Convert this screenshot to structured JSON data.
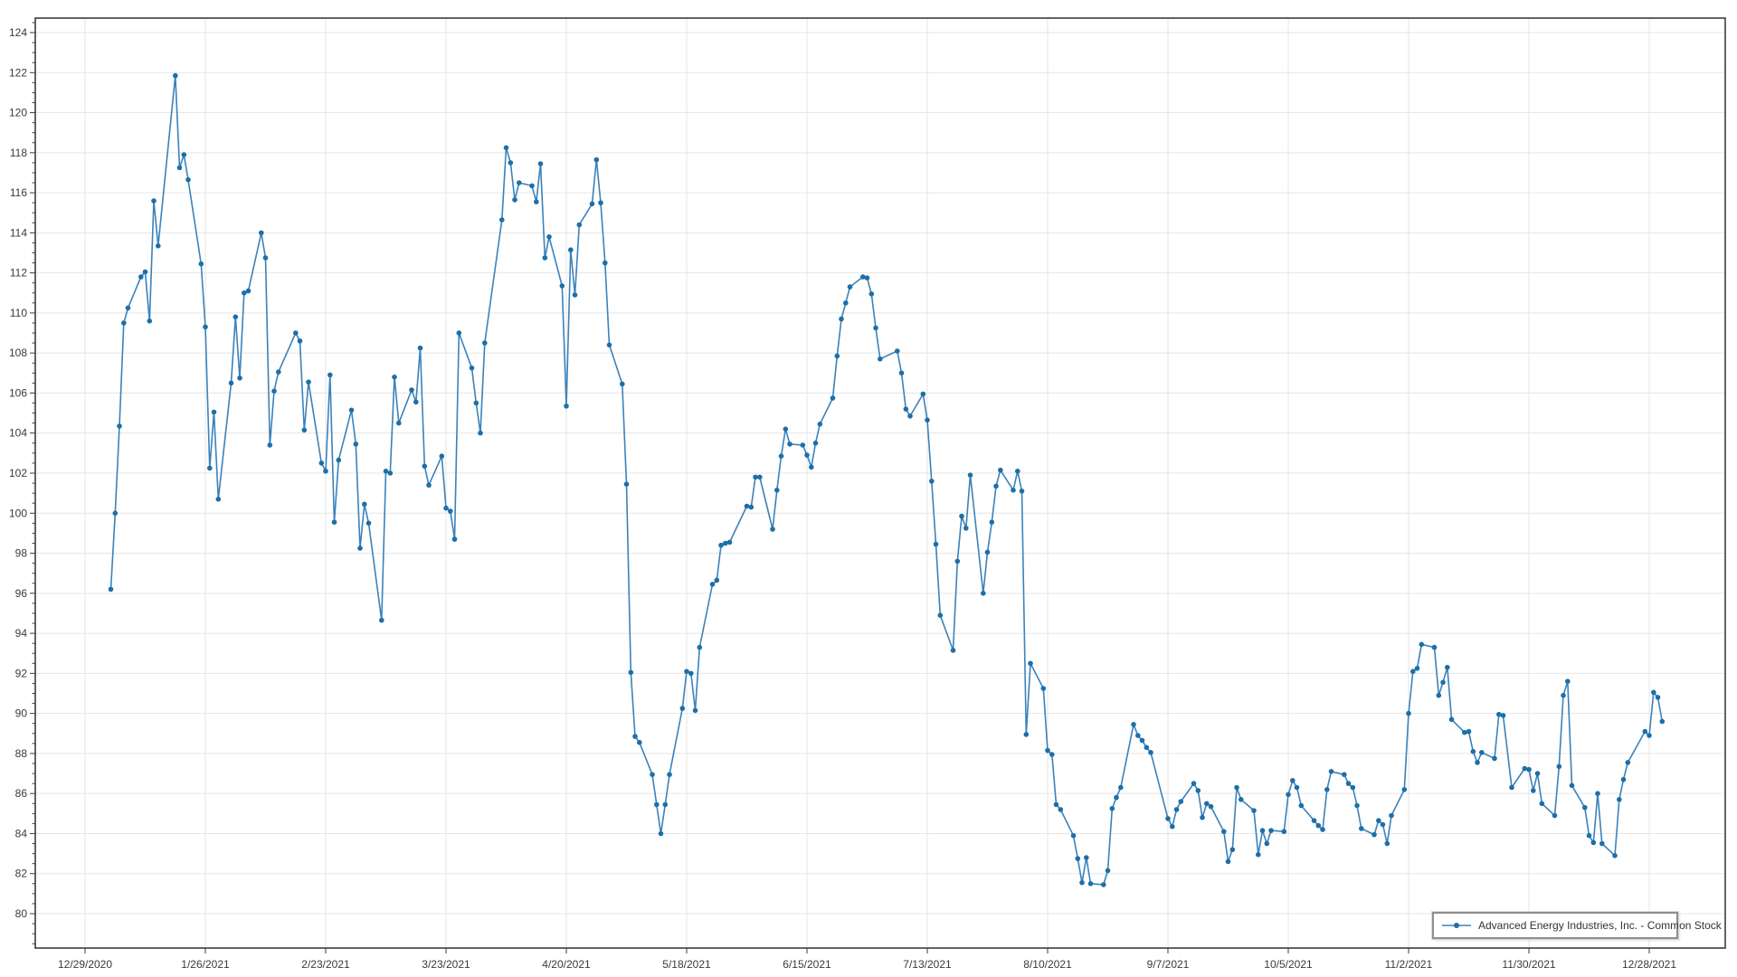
{
  "chart_data": {
    "type": "line",
    "title": "",
    "xlabel": "",
    "ylabel": "",
    "grid": true,
    "legend_position": "bottom-right",
    "legend": {
      "label": "Advanced Energy Industries, Inc. - Common Stock"
    },
    "axis": {
      "y_ticks": [
        80,
        82,
        84,
        86,
        88,
        90,
        92,
        94,
        96,
        98,
        100,
        102,
        104,
        106,
        108,
        110,
        112,
        114,
        116,
        118,
        120,
        122,
        124
      ],
      "y_minor_step": 0.5,
      "ylim": [
        78.4,
        124.8
      ],
      "x_ticks": [
        "12/29/2020",
        "1/26/2021",
        "2/23/2021",
        "3/23/2021",
        "4/20/2021",
        "5/18/2021",
        "6/15/2021",
        "7/13/2021",
        "8/10/2021",
        "9/7/2021",
        "10/5/2021",
        "11/2/2021",
        "11/30/2021",
        "12/28/2021"
      ],
      "grid_color": "#e6e6e6",
      "border_color": "#3c3c3c",
      "tick_color": "#3c3c3c",
      "label_color": "#3a3a3a"
    },
    "series": [
      {
        "name": "Advanced Energy Industries, Inc. - Common Stock",
        "line_color": "#3b82bb",
        "marker_color": "#1d6fa8",
        "marker": "circle",
        "dates": [
          "2021-01-04",
          "2021-01-05",
          "2021-01-06",
          "2021-01-07",
          "2021-01-08",
          "2021-01-11",
          "2021-01-12",
          "2021-01-13",
          "2021-01-14",
          "2021-01-15",
          "2021-01-19",
          "2021-01-20",
          "2021-01-21",
          "2021-01-22",
          "2021-01-25",
          "2021-01-26",
          "2021-01-27",
          "2021-01-28",
          "2021-01-29",
          "2021-02-01",
          "2021-02-02",
          "2021-02-03",
          "2021-02-04",
          "2021-02-05",
          "2021-02-08",
          "2021-02-09",
          "2021-02-10",
          "2021-02-11",
          "2021-02-12",
          "2021-02-16",
          "2021-02-17",
          "2021-02-18",
          "2021-02-19",
          "2021-02-22",
          "2021-02-23",
          "2021-02-24",
          "2021-02-25",
          "2021-02-26",
          "2021-03-01",
          "2021-03-02",
          "2021-03-03",
          "2021-03-04",
          "2021-03-05",
          "2021-03-08",
          "2021-03-09",
          "2021-03-10",
          "2021-03-11",
          "2021-03-12",
          "2021-03-15",
          "2021-03-16",
          "2021-03-17",
          "2021-03-18",
          "2021-03-19",
          "2021-03-22",
          "2021-03-23",
          "2021-03-24",
          "2021-03-25",
          "2021-03-26",
          "2021-03-29",
          "2021-03-30",
          "2021-03-31",
          "2021-04-01",
          "2021-04-05",
          "2021-04-06",
          "2021-04-07",
          "2021-04-08",
          "2021-04-09",
          "2021-04-12",
          "2021-04-13",
          "2021-04-14",
          "2021-04-15",
          "2021-04-16",
          "2021-04-19",
          "2021-04-20",
          "2021-04-21",
          "2021-04-22",
          "2021-04-23",
          "2021-04-26",
          "2021-04-27",
          "2021-04-28",
          "2021-04-29",
          "2021-04-30",
          "2021-05-03",
          "2021-05-04",
          "2021-05-05",
          "2021-05-06",
          "2021-05-07",
          "2021-05-10",
          "2021-05-11",
          "2021-05-12",
          "2021-05-13",
          "2021-05-14",
          "2021-05-17",
          "2021-05-18",
          "2021-05-19",
          "2021-05-20",
          "2021-05-21",
          "2021-05-24",
          "2021-05-25",
          "2021-05-26",
          "2021-05-27",
          "2021-05-28",
          "2021-06-01",
          "2021-06-02",
          "2021-06-03",
          "2021-06-04",
          "2021-06-07",
          "2021-06-08",
          "2021-06-09",
          "2021-06-10",
          "2021-06-11",
          "2021-06-14",
          "2021-06-15",
          "2021-06-16",
          "2021-06-17",
          "2021-06-18",
          "2021-06-21",
          "2021-06-22",
          "2021-06-23",
          "2021-06-24",
          "2021-06-25",
          "2021-06-28",
          "2021-06-29",
          "2021-06-30",
          "2021-07-01",
          "2021-07-02",
          "2021-07-06",
          "2021-07-07",
          "2021-07-08",
          "2021-07-09",
          "2021-07-12",
          "2021-07-13",
          "2021-07-14",
          "2021-07-15",
          "2021-07-16",
          "2021-07-19",
          "2021-07-20",
          "2021-07-21",
          "2021-07-22",
          "2021-07-23",
          "2021-07-26",
          "2021-07-27",
          "2021-07-28",
          "2021-07-29",
          "2021-07-30",
          "2021-08-02",
          "2021-08-03",
          "2021-08-04",
          "2021-08-05",
          "2021-08-06",
          "2021-08-09",
          "2021-08-10",
          "2021-08-11",
          "2021-08-12",
          "2021-08-13",
          "2021-08-16",
          "2021-08-17",
          "2021-08-18",
          "2021-08-19",
          "2021-08-20",
          "2021-08-23",
          "2021-08-24",
          "2021-08-25",
          "2021-08-26",
          "2021-08-27",
          "2021-08-30",
          "2021-08-31",
          "2021-09-01",
          "2021-09-02",
          "2021-09-03",
          "2021-09-07",
          "2021-09-08",
          "2021-09-09",
          "2021-09-10",
          "2021-09-13",
          "2021-09-14",
          "2021-09-15",
          "2021-09-16",
          "2021-09-17",
          "2021-09-20",
          "2021-09-21",
          "2021-09-22",
          "2021-09-23",
          "2021-09-24",
          "2021-09-27",
          "2021-09-28",
          "2021-09-29",
          "2021-09-30",
          "2021-10-01",
          "2021-10-04",
          "2021-10-05",
          "2021-10-06",
          "2021-10-07",
          "2021-10-08",
          "2021-10-11",
          "2021-10-12",
          "2021-10-13",
          "2021-10-14",
          "2021-10-15",
          "2021-10-18",
          "2021-10-19",
          "2021-10-20",
          "2021-10-21",
          "2021-10-22",
          "2021-10-25",
          "2021-10-26",
          "2021-10-27",
          "2021-10-28",
          "2021-10-29",
          "2021-11-01",
          "2021-11-02",
          "2021-11-03",
          "2021-11-04",
          "2021-11-05",
          "2021-11-08",
          "2021-11-09",
          "2021-11-10",
          "2021-11-11",
          "2021-11-12",
          "2021-11-15",
          "2021-11-16",
          "2021-11-17",
          "2021-11-18",
          "2021-11-19",
          "2021-11-22",
          "2021-11-23",
          "2021-11-24",
          "2021-11-26",
          "2021-11-29",
          "2021-11-30",
          "2021-12-01",
          "2021-12-02",
          "2021-12-03",
          "2021-12-06",
          "2021-12-07",
          "2021-12-08",
          "2021-12-09",
          "2021-12-10",
          "2021-12-13",
          "2021-12-14",
          "2021-12-15",
          "2021-12-16",
          "2021-12-17",
          "2021-12-20",
          "2021-12-21",
          "2021-12-22",
          "2021-12-23",
          "2021-12-27",
          "2021-12-28",
          "2021-12-29",
          "2021-12-30",
          "2021-12-31"
        ],
        "values": [
          96.2,
          100.0,
          104.35,
          109.5,
          110.25,
          111.8,
          112.05,
          109.6,
          115.6,
          113.35,
          121.85,
          117.25,
          117.9,
          116.65,
          112.45,
          109.3,
          102.25,
          105.05,
          100.7,
          106.5,
          109.8,
          106.75,
          111.0,
          111.1,
          114.0,
          112.75,
          103.4,
          106.1,
          107.05,
          109.0,
          108.6,
          104.15,
          106.55,
          102.5,
          102.1,
          106.9,
          99.55,
          102.65,
          105.15,
          103.45,
          98.25,
          100.45,
          99.5,
          94.65,
          102.1,
          102.0,
          106.8,
          104.5,
          106.15,
          105.55,
          108.25,
          102.35,
          101.4,
          102.85,
          100.25,
          100.1,
          98.7,
          109.0,
          107.25,
          105.5,
          104.0,
          108.5,
          114.65,
          118.25,
          117.5,
          115.65,
          116.5,
          116.35,
          115.55,
          117.45,
          112.75,
          113.8,
          111.35,
          105.35,
          113.15,
          110.9,
          114.4,
          115.45,
          117.65,
          115.5,
          112.5,
          108.4,
          106.45,
          101.45,
          92.05,
          88.85,
          88.55,
          86.95,
          85.45,
          84.0,
          85.45,
          86.95,
          90.25,
          92.1,
          92.0,
          90.15,
          93.3,
          96.45,
          96.65,
          98.4,
          98.5,
          98.55,
          100.35,
          100.3,
          101.8,
          101.8,
          99.2,
          101.15,
          102.85,
          104.2,
          103.45,
          103.4,
          102.9,
          102.3,
          103.5,
          104.45,
          105.75,
          107.85,
          109.7,
          110.5,
          111.3,
          111.8,
          111.75,
          110.95,
          109.25,
          107.7,
          108.1,
          107.0,
          105.2,
          104.85,
          105.95,
          104.65,
          101.6,
          98.45,
          94.9,
          93.15,
          97.6,
          99.85,
          99.25,
          101.9,
          96.0,
          98.05,
          99.55,
          101.35,
          102.15,
          101.15,
          102.1,
          101.1,
          88.95,
          92.5,
          91.25,
          88.15,
          87.95,
          85.45,
          85.2,
          83.9,
          82.75,
          81.55,
          82.8,
          81.5,
          81.45,
          82.15,
          85.25,
          85.8,
          86.3,
          89.45,
          88.9,
          88.65,
          88.3,
          88.05,
          84.75,
          84.35,
          85.2,
          85.6,
          86.5,
          86.15,
          84.8,
          85.5,
          85.35,
          84.1,
          82.6,
          83.2,
          86.3,
          85.7,
          85.15,
          82.95,
          84.15,
          83.5,
          84.15,
          84.1,
          85.95,
          86.65,
          86.3,
          85.4,
          84.65,
          84.4,
          84.2,
          86.2,
          87.1,
          86.95,
          86.5,
          86.3,
          85.4,
          84.25,
          83.95,
          84.65,
          84.45,
          83.5,
          84.9,
          86.2,
          90.0,
          92.1,
          92.25,
          93.45,
          93.3,
          90.9,
          91.55,
          92.3,
          89.7,
          89.05,
          89.1,
          88.1,
          87.55,
          88.05,
          87.75,
          89.95,
          89.9,
          86.3,
          87.25,
          87.2,
          86.15,
          87.0,
          85.5,
          84.9,
          87.35,
          90.9,
          91.6,
          86.4,
          85.3,
          83.9,
          83.55,
          86.0,
          83.5,
          82.9,
          85.7,
          86.7,
          87.55,
          89.1,
          88.9,
          91.05,
          90.8,
          89.6
        ]
      }
    ]
  }
}
